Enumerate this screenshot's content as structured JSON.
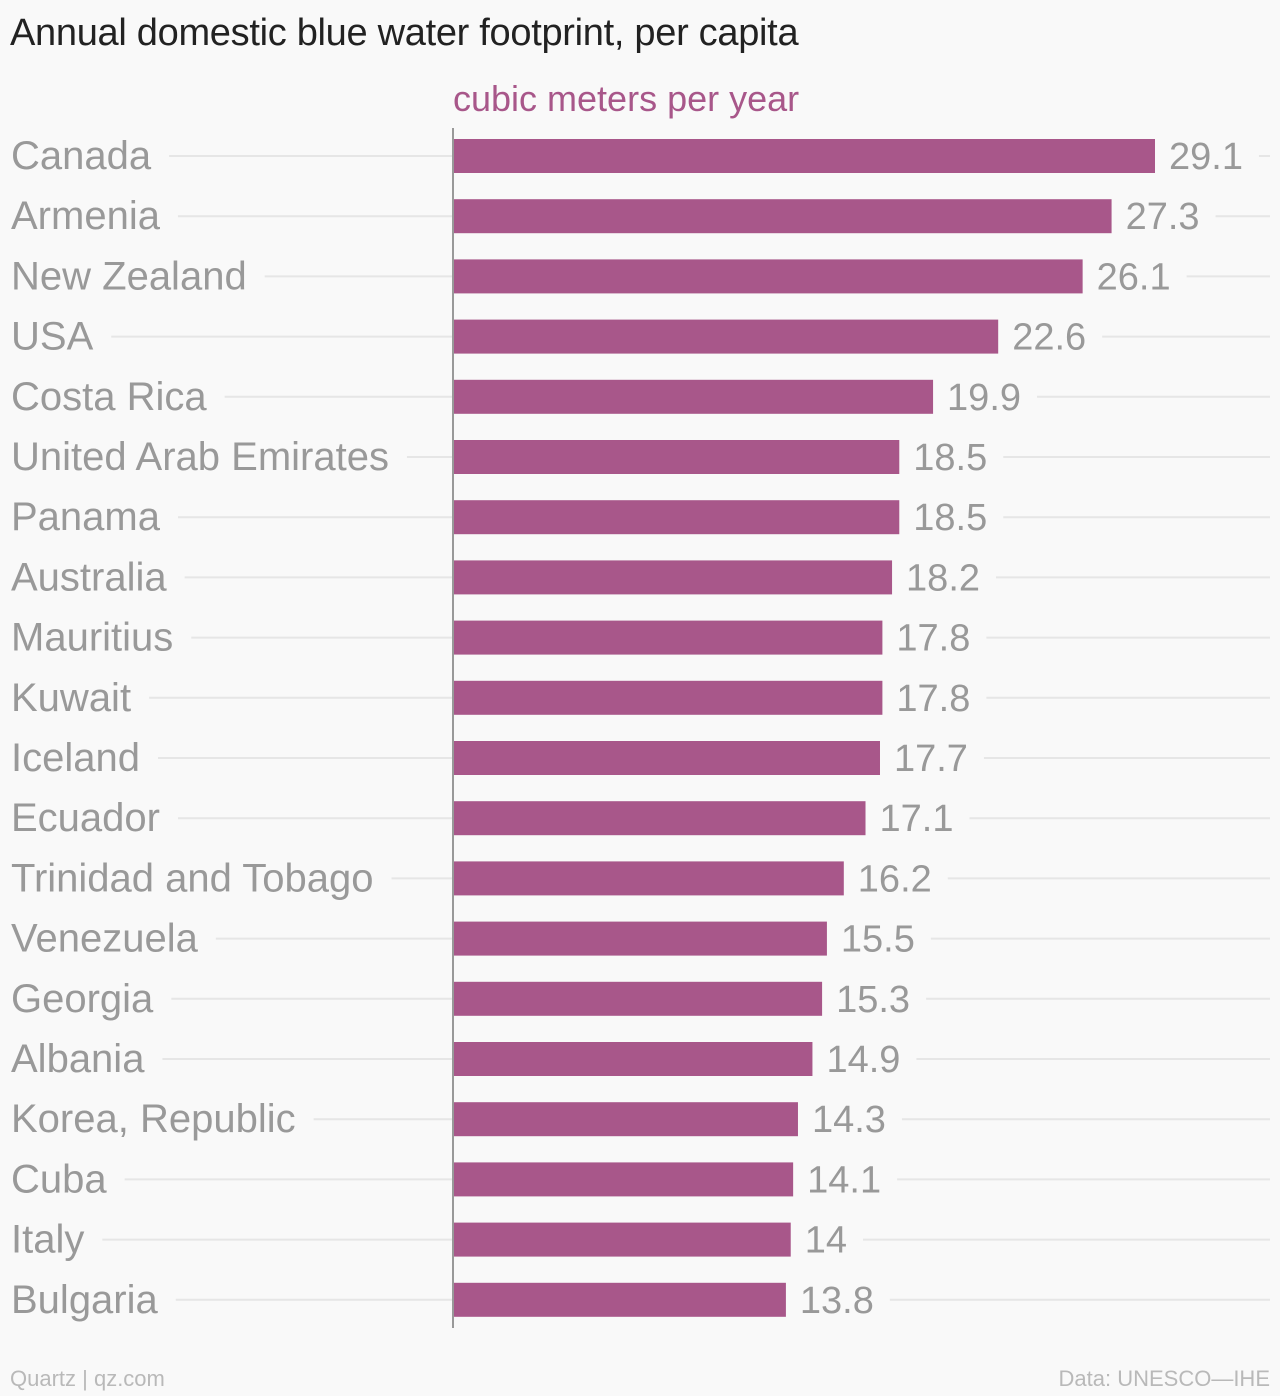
{
  "header": {
    "title": "Annual domestic blue water footprint, per capita"
  },
  "footer": {
    "source_left": "Quartz | qz.com",
    "source_right": "Data: UNESCO—IHE"
  },
  "colors": {
    "bar": "#a8578a",
    "label": "#999999",
    "grid": "#e6e6e6",
    "axis": "#999999"
  },
  "chart_data": {
    "type": "bar",
    "orientation": "horizontal",
    "unit_label": "cubic meters per year",
    "categories": [
      "Canada",
      "Armenia",
      "New Zealand",
      "USA",
      "Costa Rica",
      "United Arab Emirates",
      "Panama",
      "Australia",
      "Mauritius",
      "Kuwait",
      "Iceland",
      "Ecuador",
      "Trinidad and Tobago",
      "Venezuela",
      "Georgia",
      "Albania",
      "Korea, Republic",
      "Cuba",
      "Italy",
      "Bulgaria"
    ],
    "values": [
      29.1,
      27.3,
      26.1,
      22.6,
      19.9,
      18.5,
      18.5,
      18.2,
      17.8,
      17.8,
      17.7,
      17.1,
      16.2,
      15.5,
      15.3,
      14.9,
      14.3,
      14.1,
      14,
      13.8
    ],
    "value_labels": [
      "29.1",
      "27.3",
      "26.1",
      "22.6",
      "19.9",
      "18.5",
      "18.5",
      "18.2",
      "17.8",
      "17.8",
      "17.7",
      "17.1",
      "16.2",
      "15.5",
      "15.3",
      "14.9",
      "14.3",
      "14.1",
      "14",
      "13.8"
    ],
    "xlim": [
      0,
      29.1
    ],
    "grid": true,
    "legend": "none"
  }
}
